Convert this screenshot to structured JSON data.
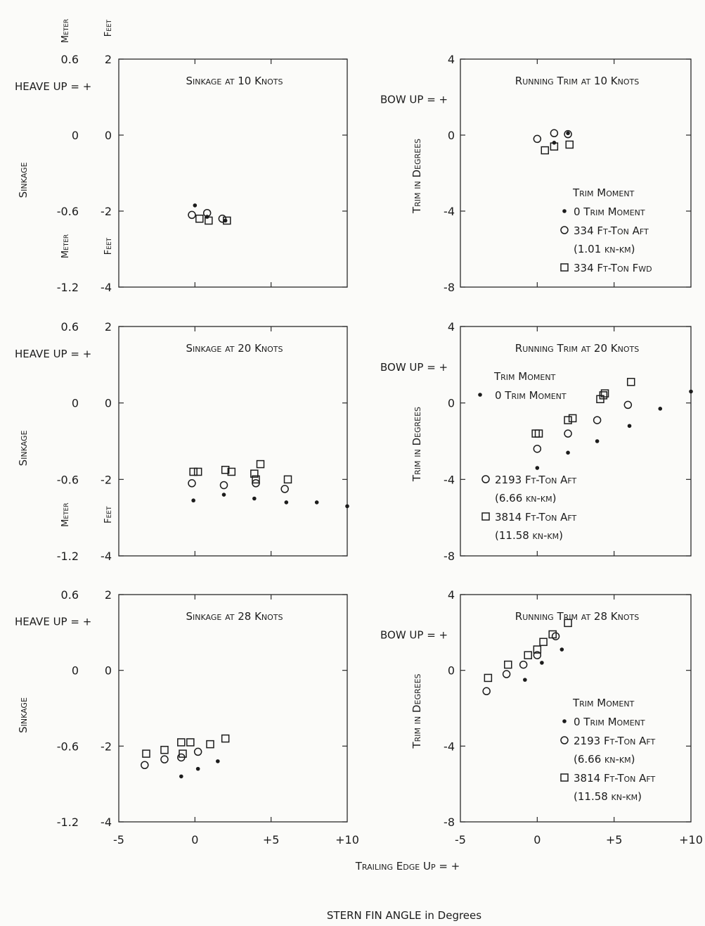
{
  "axes_labels": {
    "meter": "Meter",
    "feet": "Feet",
    "heave_up": "HEAVE UP = +",
    "bow_up": "BOW UP = +",
    "sinkage": "Sinkage",
    "trim_in_degrees": "Trim in Degrees",
    "trailing_edge": "Trailing Edge Up = +",
    "stern_fin": "STERN FIN ANGLE in Degrees"
  },
  "chart_data": [
    {
      "type": "scatter",
      "title": "Sinkage at 10 Knots",
      "ylabel": "Sinkage",
      "xlim": [
        -5,
        10
      ],
      "ylim": [
        -4,
        2
      ],
      "yticks_feet": [
        "2",
        "0",
        "-2",
        "-4"
      ],
      "yticks_meter": [
        "0.6",
        "0",
        "-0.6",
        "-1.2"
      ],
      "xticks": [],
      "series": [
        {
          "name": "0 Trim Moment",
          "marker": "dot",
          "points": [
            [
              0,
              -1.85
            ],
            [
              0.8,
              -2.15
            ],
            [
              2,
              -2.25
            ]
          ]
        },
        {
          "name": "334 Ft-Ton Aft",
          "marker": "circle",
          "points": [
            [
              -0.2,
              -2.1
            ],
            [
              0.8,
              -2.05
            ],
            [
              1.8,
              -2.2
            ]
          ]
        },
        {
          "name": "334 Ft-Ton Fwd",
          "marker": "square",
          "points": [
            [
              0.3,
              -2.2
            ],
            [
              0.9,
              -2.25
            ],
            [
              2.1,
              -2.25
            ]
          ]
        }
      ]
    },
    {
      "type": "scatter",
      "title": "Running Trim at 10 Knots",
      "ylabel": "Trim in Degrees",
      "xlim": [
        -5,
        10
      ],
      "ylim": [
        -8,
        4
      ],
      "yticks": [
        "4",
        "0",
        "-4",
        "-8"
      ],
      "xticks": [],
      "legend": {
        "title": "Trim Moment",
        "entries": [
          {
            "marker": "dot",
            "lines": [
              "0 Trim Moment"
            ]
          },
          {
            "marker": "circle",
            "lines": [
              "334 Ft-Ton Aft",
              "(1.01 kn-km)"
            ]
          },
          {
            "marker": "square",
            "lines": [
              "334 Ft-Ton Fwd"
            ]
          }
        ]
      },
      "series": [
        {
          "name": "0 Trim Moment",
          "marker": "dot",
          "points": [
            [
              1.1,
              -0.4
            ],
            [
              2,
              0.1
            ]
          ]
        },
        {
          "name": "334 Ft-Ton Aft",
          "marker": "circle",
          "points": [
            [
              0,
              -0.2
            ],
            [
              1.1,
              0.1
            ],
            [
              2,
              0.05
            ]
          ]
        },
        {
          "name": "334 Ft-Ton Fwd",
          "marker": "square",
          "points": [
            [
              0.5,
              -0.8
            ],
            [
              1.1,
              -0.6
            ],
            [
              2.1,
              -0.5
            ]
          ]
        }
      ]
    },
    {
      "type": "scatter",
      "title": "Sinkage at 20 Knots",
      "ylabel": "Sinkage",
      "xlim": [
        -5,
        10
      ],
      "ylim": [
        -4,
        2
      ],
      "yticks_feet": [
        "2",
        "0",
        "-2",
        "-4"
      ],
      "yticks_meter": [
        "0.6",
        "0",
        "-0.6",
        "-1.2"
      ],
      "xticks": [],
      "series": [
        {
          "name": "0 Trim Moment",
          "marker": "dot",
          "points": [
            [
              -0.1,
              -2.55
            ],
            [
              1.9,
              -2.4
            ],
            [
              3.9,
              -2.5
            ],
            [
              6,
              -2.6
            ],
            [
              8,
              -2.6
            ],
            [
              10,
              -2.7
            ]
          ]
        },
        {
          "name": "2193 Ft-Ton Aft",
          "marker": "circle",
          "points": [
            [
              -0.2,
              -2.1
            ],
            [
              1.9,
              -2.15
            ],
            [
              4,
              -2.1
            ],
            [
              5.9,
              -2.25
            ]
          ]
        },
        {
          "name": "3814 Ft-Ton Aft",
          "marker": "square",
          "points": [
            [
              -0.1,
              -1.8
            ],
            [
              0.2,
              -1.8
            ],
            [
              2,
              -1.75
            ],
            [
              2.4,
              -1.8
            ],
            [
              3.9,
              -1.85
            ],
            [
              4,
              -2.0
            ],
            [
              4.3,
              -1.6
            ],
            [
              6.1,
              -2.0
            ]
          ]
        }
      ]
    },
    {
      "type": "scatter",
      "title": "Running Trim at 20 Knots",
      "ylabel": "Trim in Degrees",
      "xlim": [
        -5,
        10
      ],
      "ylim": [
        -8,
        4
      ],
      "yticks": [
        "4",
        "0",
        "-4",
        "-8"
      ],
      "xticks": [],
      "legend": {
        "title": "Trim Moment",
        "entries": [
          {
            "marker": "dot",
            "lines": [
              "0 Trim Moment"
            ]
          },
          {
            "marker": "circle",
            "lines": [
              "2193 Ft-Ton Aft",
              "(6.66 kn-km)"
            ]
          },
          {
            "marker": "square",
            "lines": [
              "3814 Ft-Ton Aft",
              "(11.58 kn-km)"
            ]
          }
        ]
      },
      "series": [
        {
          "name": "0 Trim Moment",
          "marker": "dot",
          "points": [
            [
              0,
              -3.4
            ],
            [
              2,
              -2.6
            ],
            [
              3.9,
              -2.0
            ],
            [
              6,
              -1.2
            ],
            [
              8,
              -0.3
            ],
            [
              10,
              0.6
            ]
          ]
        },
        {
          "name": "2193 Ft-Ton Aft",
          "marker": "circle",
          "points": [
            [
              0,
              -2.4
            ],
            [
              2,
              -1.6
            ],
            [
              3.9,
              -0.9
            ],
            [
              5.9,
              -0.1
            ]
          ]
        },
        {
          "name": "3814 Ft-Ton Aft",
          "marker": "square",
          "points": [
            [
              -0.1,
              -1.6
            ],
            [
              0.1,
              -1.6
            ],
            [
              2,
              -0.9
            ],
            [
              2.3,
              -0.8
            ],
            [
              4.1,
              0.2
            ],
            [
              4.3,
              0.4
            ],
            [
              4.4,
              0.5
            ],
            [
              6.1,
              1.1
            ]
          ]
        }
      ]
    },
    {
      "type": "scatter",
      "title": "Sinkage at 28 Knots",
      "ylabel": "Sinkage",
      "xlim": [
        -5,
        10
      ],
      "ylim": [
        -4,
        2
      ],
      "yticks_feet": [
        "2",
        "0",
        "-2",
        "-4"
      ],
      "yticks_meter": [
        "0.6",
        "0",
        "-0.6",
        "-1.2"
      ],
      "xticks": [
        "-5",
        "0",
        "+5",
        "+10"
      ],
      "series": [
        {
          "name": "0 Trim Moment",
          "marker": "dot",
          "points": [
            [
              -0.9,
              -2.8
            ],
            [
              0.2,
              -2.6
            ],
            [
              1.5,
              -2.4
            ]
          ]
        },
        {
          "name": "2193 Ft-Ton Aft",
          "marker": "circle",
          "points": [
            [
              -3.3,
              -2.5
            ],
            [
              -2,
              -2.35
            ],
            [
              -0.9,
              -2.3
            ],
            [
              0.2,
              -2.15
            ]
          ]
        },
        {
          "name": "3814 Ft-Ton Aft",
          "marker": "square",
          "points": [
            [
              -3.2,
              -2.2
            ],
            [
              -2,
              -2.1
            ],
            [
              -0.9,
              -1.9
            ],
            [
              -0.8,
              -2.2
            ],
            [
              -0.3,
              -1.9
            ],
            [
              1,
              -1.95
            ],
            [
              2,
              -1.8
            ]
          ]
        }
      ]
    },
    {
      "type": "scatter",
      "title": "Running Trim at 28 Knots",
      "ylabel": "Trim in Degrees",
      "xlim": [
        -5,
        10
      ],
      "ylim": [
        -8,
        4
      ],
      "yticks": [
        "4",
        "0",
        "-4",
        "-8"
      ],
      "xticks": [
        "-5",
        "0",
        "+5",
        "+10"
      ],
      "legend": {
        "title": "Trim Moment",
        "entries": [
          {
            "marker": "dot",
            "lines": [
              "0 Trim Moment"
            ]
          },
          {
            "marker": "circle",
            "lines": [
              "2193 Ft-Ton Aft",
              "(6.66 kn-km)"
            ]
          },
          {
            "marker": "square",
            "lines": [
              "3814 Ft-Ton Aft",
              "(11.58 kn-km)"
            ]
          }
        ]
      },
      "series": [
        {
          "name": "0 Trim Moment",
          "marker": "dot",
          "points": [
            [
              -0.8,
              -0.5
            ],
            [
              0.3,
              0.4
            ],
            [
              1.6,
              1.1
            ]
          ]
        },
        {
          "name": "2193 Ft-Ton Aft",
          "marker": "circle",
          "points": [
            [
              -3.3,
              -1.1
            ],
            [
              -2,
              -0.2
            ],
            [
              -0.9,
              0.3
            ],
            [
              0,
              0.8
            ],
            [
              1.2,
              1.8
            ]
          ]
        },
        {
          "name": "3814 Ft-Ton Aft",
          "marker": "square",
          "points": [
            [
              -3.2,
              -0.4
            ],
            [
              -1.9,
              0.3
            ],
            [
              -0.6,
              0.8
            ],
            [
              0,
              1.1
            ],
            [
              0.4,
              1.5
            ],
            [
              1,
              1.9
            ],
            [
              2,
              2.5
            ]
          ]
        }
      ]
    }
  ]
}
